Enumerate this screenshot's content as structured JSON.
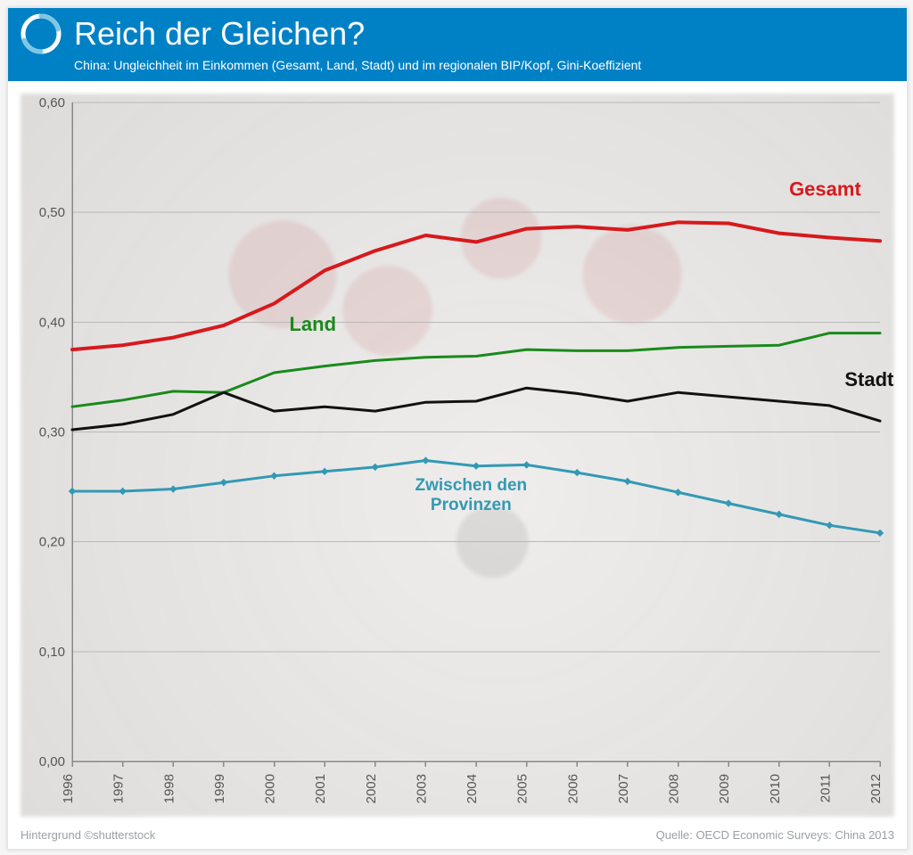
{
  "header": {
    "title": "Reich der Gleichen?",
    "subtitle": "China: Ungleichheit im Einkommen (Gesamt, Land, Stadt) und im regionalen BIP/Kopf, Gini-Koeffizient",
    "bg_color": "#0081c6",
    "text_color": "#ffffff",
    "title_fontsize": 36,
    "subtitle_fontsize": 14,
    "logo_colors": {
      "base": "#ffffff",
      "overlay": "#7fc6e6"
    }
  },
  "footer": {
    "left": "Hintergrund ©shutterstock",
    "right": "Quelle: OECD Economic Surveys: China 2013",
    "color": "#9aa0a4",
    "fontsize": 13
  },
  "chart": {
    "type": "line",
    "years": [
      1996,
      1997,
      1998,
      1999,
      2000,
      2001,
      2002,
      2003,
      2004,
      2005,
      2006,
      2007,
      2008,
      2009,
      2010,
      2011,
      2012
    ],
    "ylim": [
      0.0,
      0.6
    ],
    "ytick_step": 0.1,
    "ytick_labels": [
      "0,00",
      "0,10",
      "0,20",
      "0,30",
      "0,40",
      "0,50",
      "0,60"
    ],
    "grid_color": "#b8b8b8",
    "axis_color": "#888888",
    "axis_label_color": "#555555",
    "axis_fontsize": 15,
    "xlabel_rotation": -90,
    "line_width": 4,
    "line_width_thin": 3,
    "marker_radius": 3.5,
    "series": {
      "gesamt": {
        "label": "Gesamt",
        "color": "#d7191c",
        "label_x": 2010.2,
        "label_y": 0.515,
        "values": [
          0.375,
          0.379,
          0.386,
          0.397,
          0.417,
          0.447,
          0.465,
          0.479,
          0.473,
          0.485,
          0.487,
          0.484,
          0.491,
          0.49,
          0.481,
          0.477,
          0.474
        ]
      },
      "land": {
        "label": "Land",
        "color": "#1a8a1a",
        "label_x": 2000.3,
        "label_y": 0.392,
        "values": [
          0.323,
          0.329,
          0.337,
          0.336,
          0.354,
          0.36,
          0.365,
          0.368,
          0.369,
          0.375,
          0.374,
          0.374,
          0.377,
          0.378,
          0.379,
          0.39,
          0.39
        ]
      },
      "stadt": {
        "label": "Stadt",
        "color": "#111111",
        "label_x": 2011.3,
        "label_y": 0.342,
        "values": [
          0.302,
          0.307,
          0.316,
          0.336,
          0.319,
          0.323,
          0.319,
          0.327,
          0.328,
          0.34,
          0.335,
          0.328,
          0.336,
          0.332,
          0.328,
          0.324,
          0.31
        ]
      },
      "provinzen": {
        "label_line1": "Zwischen den",
        "label_line2": "Provinzen",
        "color": "#3399b3",
        "label_x": 2003.9,
        "label_y": 0.247,
        "has_markers": true,
        "values": [
          0.246,
          0.246,
          0.248,
          0.254,
          0.26,
          0.264,
          0.268,
          0.274,
          0.269,
          0.27,
          0.263,
          0.255,
          0.245,
          0.235,
          0.225,
          0.215,
          0.208
        ]
      }
    }
  }
}
